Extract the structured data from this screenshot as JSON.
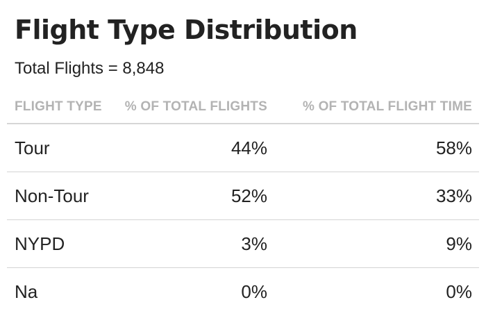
{
  "title": "Flight Type Distribution",
  "subtitle": "Total Flights = 8,848",
  "table": {
    "headers": [
      "FLIGHT TYPE",
      "% OF TOTAL FLIGHTS",
      "% OF TOTAL FLIGHT TIME"
    ],
    "rows": [
      [
        "Tour",
        "44%",
        "58%"
      ],
      [
        "Non-Tour",
        "52%",
        "33%"
      ],
      [
        "NYPD",
        "3%",
        "9%"
      ],
      [
        "Na",
        "0%",
        "0%"
      ]
    ]
  }
}
